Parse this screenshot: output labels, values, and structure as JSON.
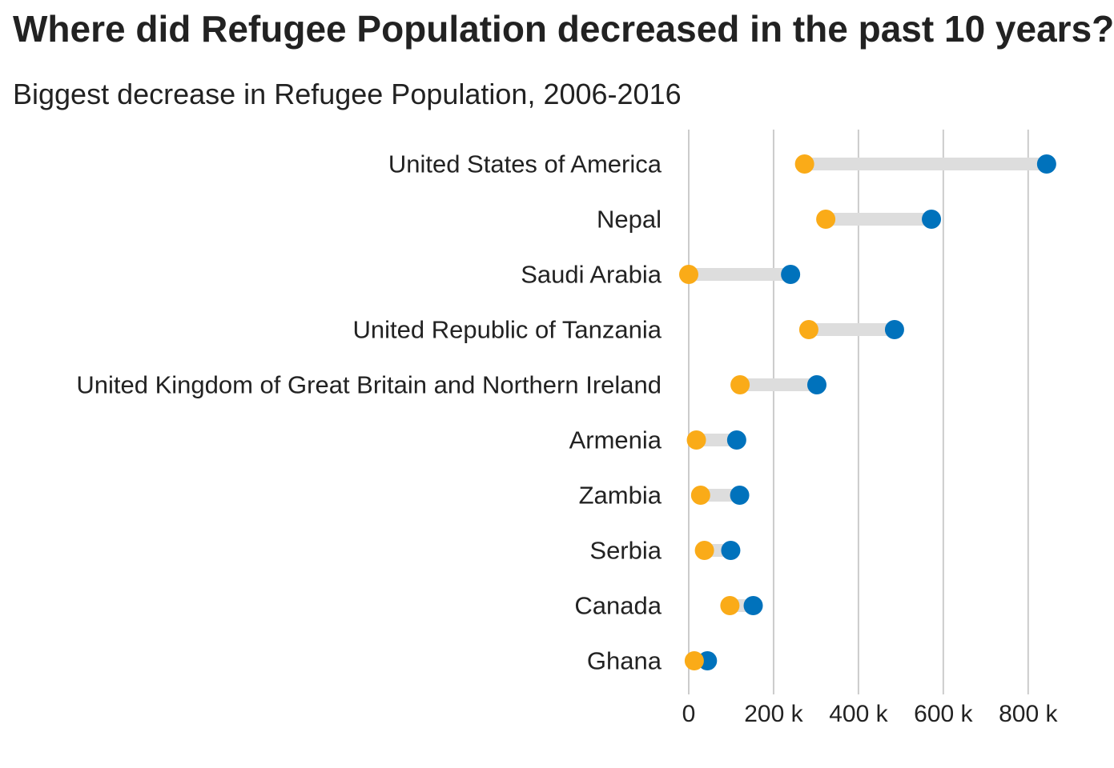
{
  "title": "Where did Refugee Population decreased in the past 10 years?",
  "subtitle": "Biggest decrease in Refugee Population, 2006-2016",
  "colors": {
    "start_2006": "#0072BC",
    "end_2016": "#FAAB18",
    "connector": "#DDDDDD",
    "gridline": "#CCCCCC",
    "text": "#222222"
  },
  "chart_data": {
    "type": "dumbbell",
    "title": "Where did Refugee Population decreased in the past 10 years?",
    "subtitle": "Biggest decrease in Refugee Population, 2006-2016",
    "xlabel": "",
    "ylabel": "",
    "xlim": [
      0,
      850000
    ],
    "x_ticks": [
      0,
      200000,
      400000,
      600000,
      800000
    ],
    "x_tick_labels": [
      "0",
      "200 k",
      "400 k",
      "600 k",
      "800 k"
    ],
    "grid": "vertical",
    "legend": "none",
    "categories": [
      "United States of America",
      "Nepal",
      "Saudi Arabia",
      "United Republic of Tanzania",
      "United Kingdom of Great Britain and Northern Ireland",
      "Armenia",
      "Zambia",
      "Serbia",
      "Canada",
      "Ghana"
    ],
    "series": [
      {
        "year": 2006,
        "values": [
          843500,
          572000,
          240000,
          485000,
          302000,
          113000,
          120000,
          99000,
          152000,
          44000
        ]
      },
      {
        "year": 2016,
        "values": [
          273000,
          323000,
          0,
          283000,
          121000,
          18000,
          28000,
          37000,
          97000,
          13000
        ]
      }
    ]
  }
}
